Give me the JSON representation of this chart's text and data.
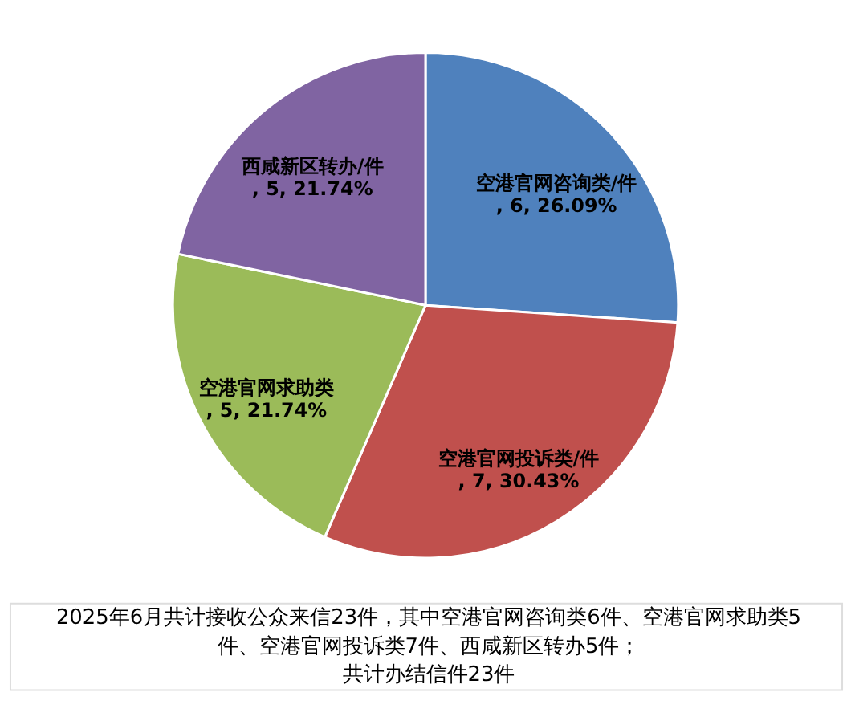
{
  "chart_data": {
    "type": "pie",
    "categories": [
      "空港官网咨询类/件",
      "空港官网投诉类/件",
      "空港官网求助类",
      "西咸新区转办/件"
    ],
    "values": [
      6,
      7,
      5,
      5
    ],
    "colors": [
      "#4f81bd",
      "#c0504d",
      "#9bbb59",
      "#8064a2"
    ],
    "value_labels": [
      ", 6, 26.09%",
      ", 7, 30.43%",
      ", 5, 21.74%",
      ", 5, 21.74%"
    ],
    "annotations": [
      "2025年6月共计接收公众来信23件，其中空港官网咨询类6件、空港官网求助类5",
      "件、空港官网投诉类7件、西咸新区转办5件；",
      "共计办结信件23件"
    ]
  }
}
